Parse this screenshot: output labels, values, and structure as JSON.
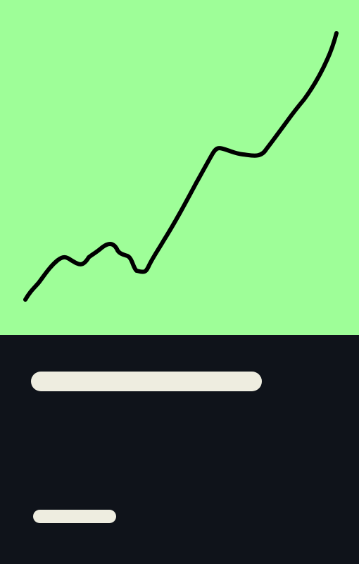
{
  "colors": {
    "hero_background": "#9efe98",
    "panel_background": "#0f131a",
    "line": "#000000",
    "placeholder": "#eeede0"
  },
  "hero": {
    "icon": "trend-line-icon"
  },
  "content": {
    "title_placeholder": "text-placeholder",
    "caption_placeholder": "text-placeholder"
  }
}
